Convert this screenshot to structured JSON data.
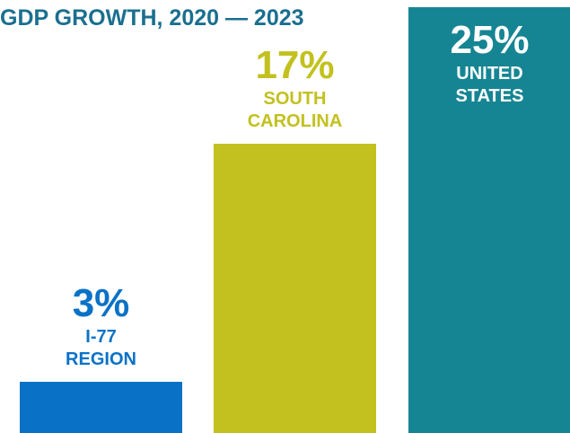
{
  "chart_data": {
    "type": "bar",
    "title": "GDP GROWTH, 2020 — 2023",
    "categories": [
      "I-77 REGION",
      "SOUTH CAROLINA",
      "UNITED STATES"
    ],
    "values": [
      3,
      17,
      25
    ],
    "value_labels": [
      "3%",
      "17%",
      "25%"
    ],
    "colors": [
      "#0a72c6",
      "#c2c11f",
      "#168593"
    ],
    "ylim": [
      0,
      25
    ]
  }
}
